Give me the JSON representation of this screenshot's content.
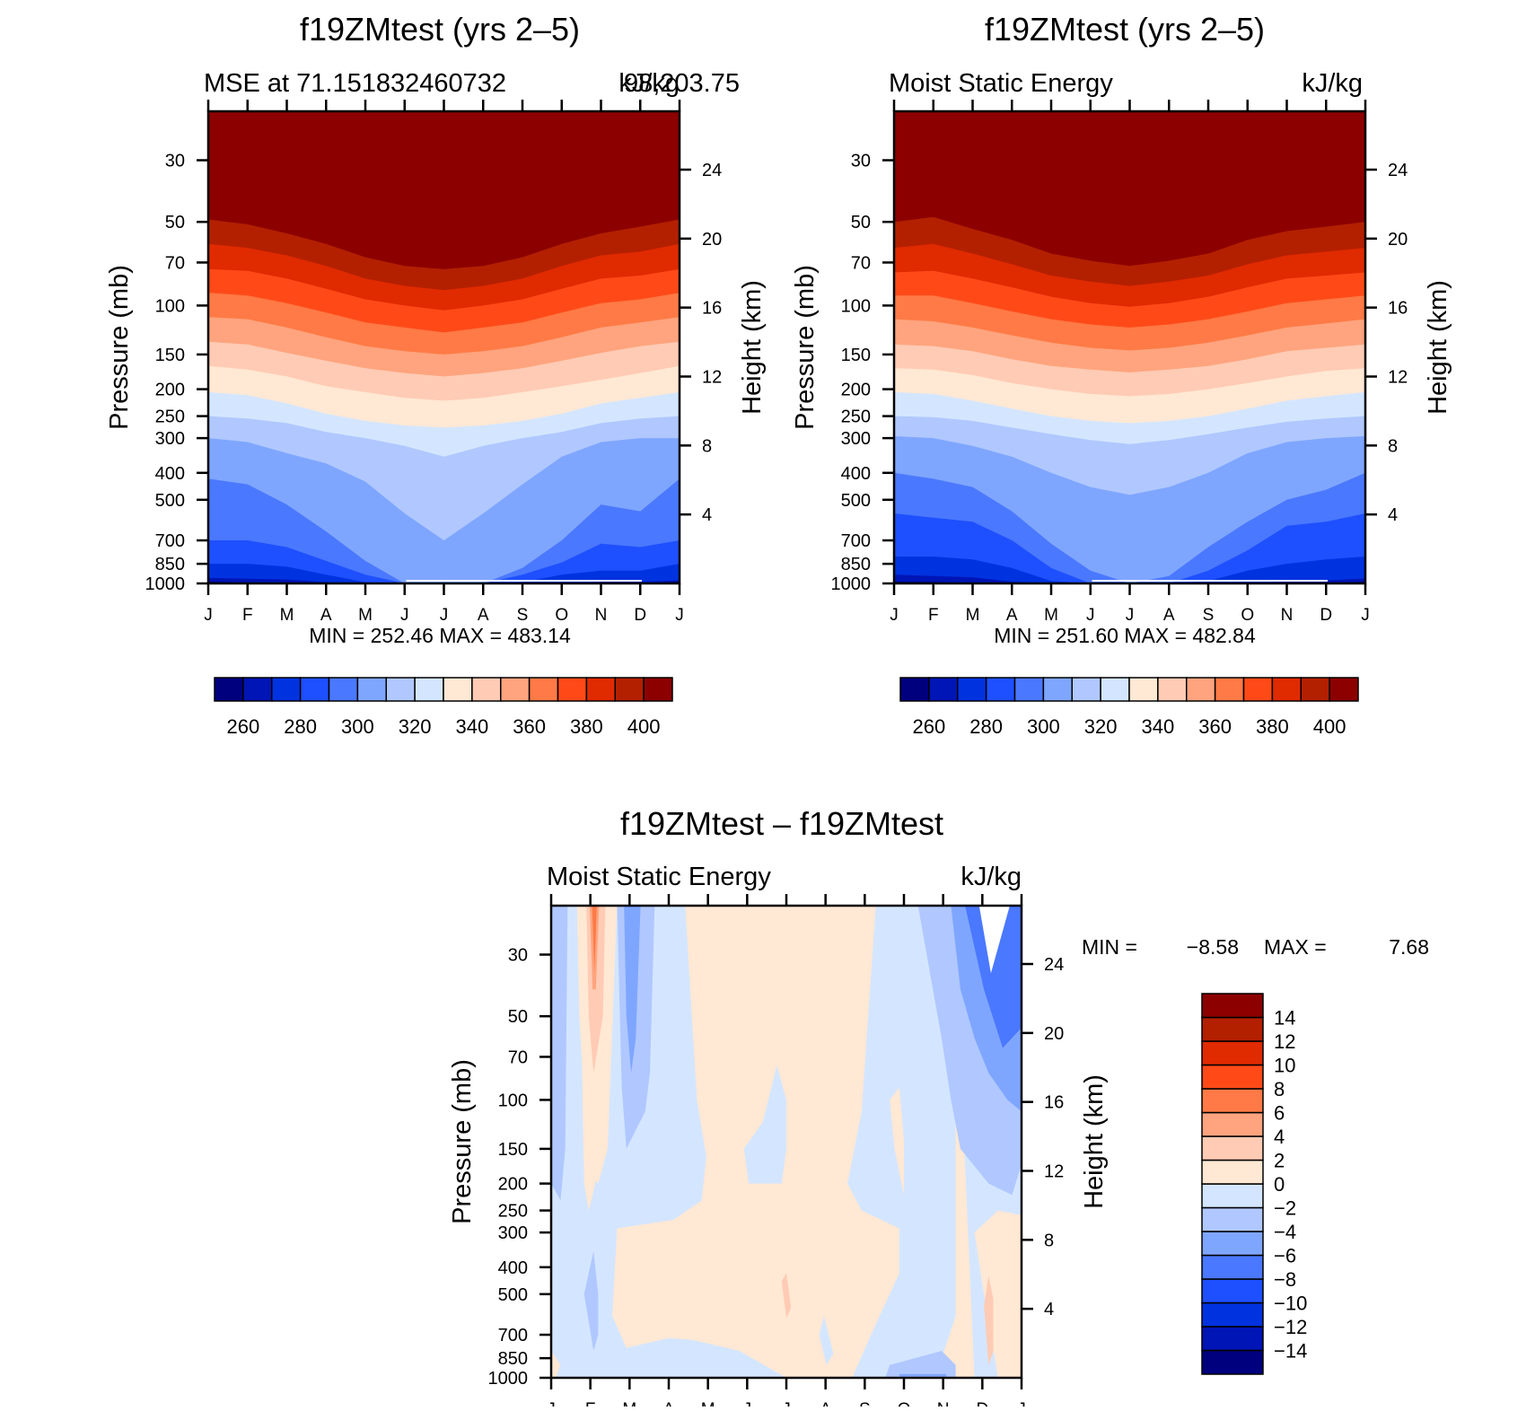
{
  "panels": [
    {
      "title": "f19ZMtest (yrs 2–5)",
      "subtitle_left": "MSE at 71.151832460732",
      "subtitle_right": "98,203.75",
      "subtitle_overlap": "kJ/kg",
      "stats": "MIN = 252.46 MAX = 483.14"
    },
    {
      "title": "f19ZMtest (yrs 2–5)",
      "subtitle_left": "Moist Static Energy",
      "subtitle_right": "kJ/kg",
      "stats": "MIN = 251.60 MAX = 482.84"
    },
    {
      "title": "f19ZMtest – f19ZMtest",
      "subtitle_left": "Moist Static Energy",
      "subtitle_right": "kJ/kg",
      "stats_min_label": "MIN =",
      "stats_min": "−8.58",
      "stats_max_label": "MAX =",
      "stats_max": "7.68"
    }
  ],
  "chart_data": [
    {
      "type": "heatmap",
      "title": "f19ZMtest (yrs 2–5)",
      "subtitle": "MSE at 71.151832460732 98,203.75 kJ/kg",
      "xlabel": "",
      "ylabel": "Pressure (mb)",
      "ylabel_right": "Height (km)",
      "x_ticks": [
        "J",
        "F",
        "M",
        "A",
        "M",
        "J",
        "J",
        "A",
        "S",
        "O",
        "N",
        "D",
        "J"
      ],
      "y_ticks": [
        "30",
        "50",
        "70",
        "100",
        "150",
        "200",
        "250",
        "300",
        "400",
        "500",
        "700",
        "850",
        "1000"
      ],
      "y_ticks_right": [
        "24",
        "20",
        "16",
        "12",
        "8",
        "4"
      ],
      "ylim_mb": [
        1000,
        20
      ],
      "colorbar_levels": [
        260,
        270,
        280,
        290,
        300,
        310,
        320,
        330,
        340,
        350,
        360,
        370,
        380,
        390,
        400
      ],
      "colorbar_labels": [
        "260",
        "280",
        "300",
        "320",
        "340",
        "360",
        "380",
        "400"
      ],
      "min": 252.46,
      "max": 483.14,
      "boundary_levels": [
        260,
        270,
        280,
        290,
        300,
        310,
        320,
        330,
        340,
        350,
        360,
        370,
        380,
        390,
        400
      ],
      "boundary_pressures_mb": [
        [
          985,
          992,
          997,
          1000,
          1000,
          1000,
          1000,
          1000,
          1000,
          1000,
          1000,
          1000,
          985
        ],
        [
          955,
          962,
          968,
          990,
          1000,
          1000,
          1000,
          1000,
          1000,
          1000,
          985,
          985,
          975
        ],
        [
          850,
          850,
          870,
          930,
          990,
          1000,
          1000,
          1000,
          990,
          930,
          900,
          900,
          850
        ],
        [
          700,
          700,
          740,
          830,
          930,
          1000,
          1000,
          1000,
          930,
          840,
          720,
          740,
          700
        ],
        [
          420,
          440,
          520,
          650,
          830,
          1000,
          1000,
          1000,
          880,
          700,
          520,
          550,
          420
        ],
        [
          300,
          310,
          340,
          370,
          430,
          560,
          700,
          560,
          440,
          350,
          310,
          300,
          300
        ],
        [
          250,
          255,
          265,
          285,
          300,
          320,
          350,
          320,
          300,
          285,
          265,
          255,
          250
        ],
        [
          205,
          210,
          225,
          245,
          260,
          270,
          275,
          270,
          260,
          245,
          225,
          215,
          205
        ],
        [
          165,
          170,
          180,
          195,
          205,
          215,
          220,
          215,
          205,
          195,
          185,
          175,
          165
        ],
        [
          135,
          138,
          148,
          158,
          168,
          175,
          180,
          175,
          168,
          158,
          148,
          140,
          135
        ],
        [
          110,
          112,
          120,
          130,
          140,
          146,
          150,
          146,
          140,
          130,
          120,
          115,
          110
        ],
        [
          90,
          92,
          98,
          106,
          115,
          120,
          125,
          120,
          115,
          106,
          98,
          95,
          90
        ],
        [
          74,
          75,
          80,
          87,
          95,
          100,
          104,
          100,
          95,
          87,
          80,
          78,
          74
        ],
        [
          60,
          62,
          66,
          72,
          80,
          85,
          88,
          85,
          80,
          72,
          66,
          64,
          60
        ],
        [
          49,
          51,
          55,
          60,
          67,
          72,
          74,
          72,
          67,
          60,
          55,
          52,
          49
        ]
      ]
    },
    {
      "type": "heatmap",
      "title": "f19ZMtest (yrs 2–5)",
      "subtitle": "Moist Static Energy kJ/kg",
      "xlabel": "",
      "ylabel": "Pressure (mb)",
      "ylabel_right": "Height (km)",
      "x_ticks": [
        "J",
        "F",
        "M",
        "A",
        "M",
        "J",
        "J",
        "A",
        "S",
        "O",
        "N",
        "D",
        "J"
      ],
      "y_ticks": [
        "30",
        "50",
        "70",
        "100",
        "150",
        "200",
        "250",
        "300",
        "400",
        "500",
        "700",
        "850",
        "1000"
      ],
      "y_ticks_right": [
        "24",
        "20",
        "16",
        "12",
        "8",
        "4"
      ],
      "ylim_mb": [
        1000,
        20
      ],
      "colorbar_levels": [
        260,
        270,
        280,
        290,
        300,
        310,
        320,
        330,
        340,
        350,
        360,
        370,
        380,
        390,
        400
      ],
      "colorbar_labels": [
        "260",
        "280",
        "300",
        "320",
        "340",
        "360",
        "380",
        "400"
      ],
      "min": 251.6,
      "max": 482.84,
      "boundary_levels": [
        260,
        270,
        280,
        290,
        300,
        310,
        320,
        330,
        340,
        350,
        360,
        370,
        380,
        390,
        400
      ],
      "boundary_pressures_mb": [
        [
          985,
          988,
          995,
          1000,
          1000,
          1000,
          1000,
          1000,
          1000,
          1000,
          1000,
          995,
          985
        ],
        [
          930,
          940,
          950,
          985,
          1000,
          1000,
          1000,
          1000,
          1000,
          1000,
          985,
          975,
          960
        ],
        [
          800,
          800,
          820,
          880,
          980,
          1000,
          1000,
          1000,
          980,
          900,
          850,
          820,
          800
        ],
        [
          560,
          580,
          600,
          700,
          880,
          1000,
          1000,
          1000,
          900,
          760,
          620,
          600,
          560
        ],
        [
          400,
          420,
          450,
          550,
          720,
          900,
          1000,
          940,
          740,
          600,
          500,
          460,
          400
        ],
        [
          295,
          300,
          320,
          350,
          400,
          450,
          480,
          450,
          400,
          340,
          310,
          300,
          295
        ],
        [
          250,
          252,
          260,
          275,
          290,
          305,
          315,
          305,
          290,
          275,
          262,
          255,
          250
        ],
        [
          205,
          208,
          220,
          235,
          250,
          260,
          265,
          260,
          250,
          235,
          220,
          212,
          205
        ],
        [
          168,
          170,
          178,
          190,
          200,
          208,
          212,
          208,
          200,
          190,
          180,
          172,
          168
        ],
        [
          138,
          140,
          146,
          156,
          165,
          170,
          174,
          170,
          165,
          156,
          146,
          142,
          138
        ],
        [
          112,
          114,
          120,
          128,
          136,
          142,
          145,
          142,
          136,
          128,
          120,
          116,
          112
        ],
        [
          92,
          92,
          98,
          105,
          112,
          117,
          120,
          117,
          112,
          105,
          98,
          95,
          92
        ],
        [
          76,
          75,
          80,
          86,
          93,
          98,
          101,
          98,
          93,
          86,
          80,
          78,
          76
        ],
        [
          62,
          60,
          65,
          71,
          78,
          82,
          85,
          82,
          78,
          71,
          66,
          64,
          62
        ],
        [
          50,
          48,
          53,
          58,
          65,
          69,
          72,
          69,
          65,
          58,
          54,
          52,
          50
        ]
      ]
    },
    {
      "type": "heatmap",
      "title": "f19ZMtest – f19ZMtest",
      "subtitle": "Moist Static Energy kJ/kg",
      "xlabel": "",
      "ylabel": "Pressure (mb)",
      "ylabel_right": "Height (km)",
      "x_ticks": [
        "J",
        "F",
        "M",
        "A",
        "M",
        "J",
        "J",
        "A",
        "S",
        "O",
        "N",
        "D",
        "J"
      ],
      "y_ticks": [
        "30",
        "50",
        "70",
        "100",
        "150",
        "200",
        "250",
        "300",
        "400",
        "500",
        "700",
        "850",
        "1000"
      ],
      "y_ticks_right": [
        "24",
        "20",
        "16",
        "12",
        "8",
        "4"
      ],
      "ylim_mb": [
        1000,
        20
      ],
      "colorbar_levels": [
        -14,
        -12,
        -10,
        -8,
        -6,
        -4,
        -2,
        0,
        2,
        4,
        6,
        8,
        10,
        12,
        14
      ],
      "colorbar_labels": [
        "−14",
        "−12",
        "−10",
        "−8",
        "−6",
        "−4",
        "−2",
        "0",
        "2",
        "4",
        "6",
        "8",
        "10",
        "12",
        "14"
      ],
      "min": -8.58,
      "max": 7.68
    }
  ]
}
